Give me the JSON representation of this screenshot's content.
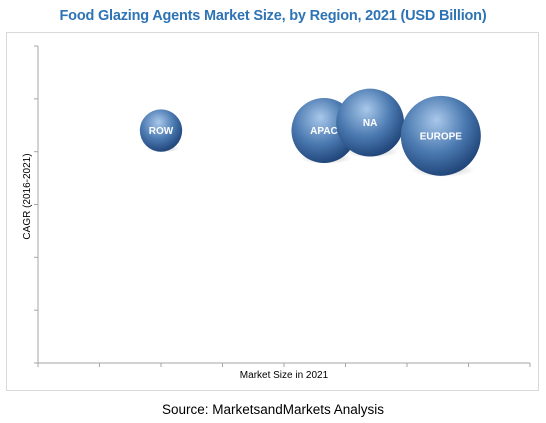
{
  "source": "Source: MarketsandMarkets Analysis",
  "chart_data": {
    "type": "bubble",
    "title": "Food Glazing Agents Market Size, by Region, 2021 (USD Billion)",
    "xlabel": "Market Size in 2021",
    "ylabel": "CAGR (2016-2021)",
    "xlim": [
      0,
      8
    ],
    "ylim": [
      0,
      6
    ],
    "x_ticks_count": 8,
    "y_ticks_count": 6,
    "grid": false,
    "points": [
      {
        "label": "ROW",
        "x": 2.0,
        "y": 4.4,
        "size": 0.28
      },
      {
        "label": "APAC",
        "x": 4.65,
        "y": 4.4,
        "size": 0.66
      },
      {
        "label": "NA",
        "x": 5.4,
        "y": 4.55,
        "size": 0.72
      },
      {
        "label": "EUROPE",
        "x": 6.55,
        "y": 4.3,
        "size": 1.0
      }
    ],
    "colors": {
      "bubble_light": "#9fc0e4",
      "bubble_mid": "#4a79b0",
      "bubble_dark": "#1b3f73",
      "title": "#2e74b5"
    }
  }
}
